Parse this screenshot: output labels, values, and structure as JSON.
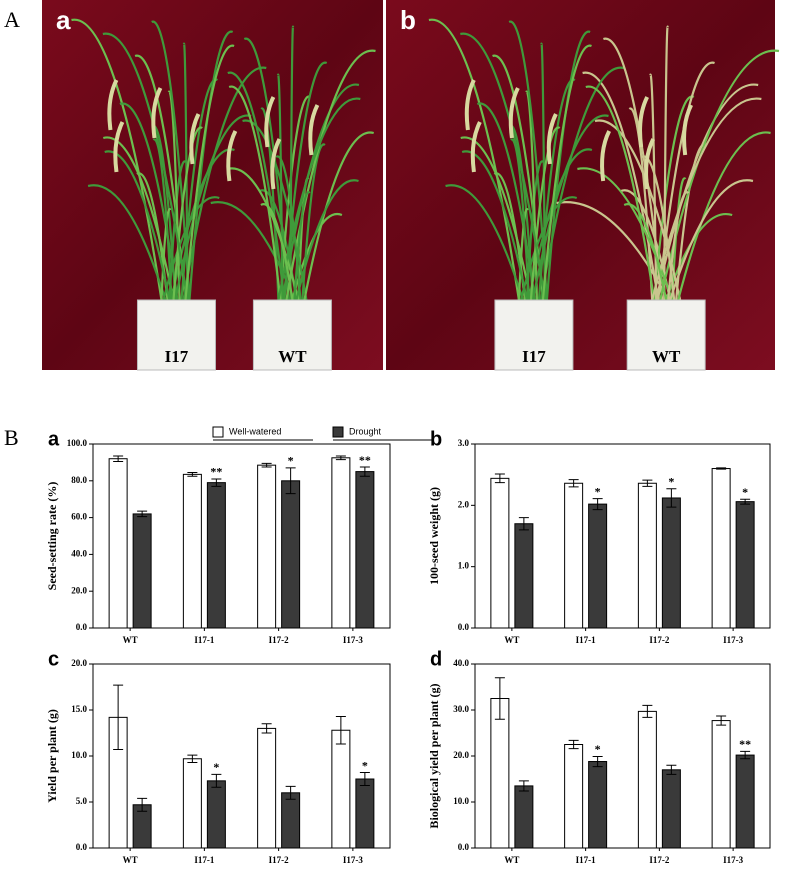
{
  "figure_labels": {
    "A": "A",
    "B": "B"
  },
  "photos": [
    {
      "letter": "a",
      "pots": [
        "I17",
        "WT"
      ]
    },
    {
      "letter": "b",
      "pots": [
        "I17",
        "WT"
      ]
    }
  ],
  "chart_data": [
    {
      "type": "bar",
      "panel": "a",
      "ylabel": "Seed-setting rate (%)",
      "categories": [
        "WT",
        "I17-1",
        "I17-2",
        "I17-3"
      ],
      "legend": true,
      "series": [
        {
          "name": "Well-watered",
          "color": "#ffffff",
          "values": [
            92,
            83.5,
            88.5,
            92.5
          ],
          "errors": [
            1.5,
            1,
            1,
            1
          ],
          "annotations": [
            null,
            null,
            null,
            null
          ]
        },
        {
          "name": "Drought",
          "color": "#3a3a3a",
          "values": [
            62,
            79,
            80,
            85
          ],
          "errors": [
            1.5,
            2,
            7,
            2.5
          ],
          "annotations": [
            null,
            "**",
            "*",
            "**"
          ]
        }
      ],
      "ylim": [
        0,
        100
      ],
      "yticks": [
        {
          "value": 0,
          "label": "0.0"
        },
        {
          "value": 20,
          "label": "20.0"
        },
        {
          "value": 40,
          "label": "40.0"
        },
        {
          "value": 60,
          "label": "60.0"
        },
        {
          "value": 80,
          "label": "80.0"
        },
        {
          "value": 100,
          "label": "100.0"
        }
      ]
    },
    {
      "type": "bar",
      "panel": "b",
      "ylabel": "100-seed weight (g)",
      "categories": [
        "WT",
        "I17-1",
        "I17-2",
        "I17-3"
      ],
      "legend": false,
      "series": [
        {
          "name": "Well-watered",
          "color": "#ffffff",
          "values": [
            2.44,
            2.36,
            2.36,
            2.6
          ],
          "errors": [
            0.07,
            0.06,
            0.05,
            0.01
          ],
          "annotations": [
            null,
            null,
            null,
            null
          ]
        },
        {
          "name": "Drought",
          "color": "#3a3a3a",
          "values": [
            1.7,
            2.02,
            2.12,
            2.06
          ],
          "errors": [
            0.1,
            0.09,
            0.15,
            0.04
          ],
          "annotations": [
            null,
            "*",
            "*",
            "*"
          ]
        }
      ],
      "ylim": [
        0,
        3
      ],
      "yticks": [
        {
          "value": 0,
          "label": "0.0"
        },
        {
          "value": 1,
          "label": "1.0"
        },
        {
          "value": 2,
          "label": "2.0"
        },
        {
          "value": 3,
          "label": "3.0"
        }
      ]
    },
    {
      "type": "bar",
      "panel": "c",
      "ylabel": "Yield per plant (g)",
      "categories": [
        "WT",
        "I17-1",
        "I17-2",
        "I17-3"
      ],
      "legend": false,
      "series": [
        {
          "name": "Well-watered",
          "color": "#ffffff",
          "values": [
            14.2,
            9.7,
            13,
            12.8
          ],
          "errors": [
            3.5,
            0.4,
            0.5,
            1.5
          ],
          "annotations": [
            null,
            null,
            null,
            null
          ]
        },
        {
          "name": "Drought",
          "color": "#3a3a3a",
          "values": [
            4.7,
            7.3,
            6,
            7.5
          ],
          "errors": [
            0.7,
            0.7,
            0.7,
            0.7
          ],
          "annotations": [
            null,
            "*",
            null,
            "*"
          ]
        }
      ],
      "ylim": [
        0,
        20
      ],
      "yticks": [
        {
          "value": 0,
          "label": "0.0"
        },
        {
          "value": 5,
          "label": "5.0"
        },
        {
          "value": 10,
          "label": "10.0"
        },
        {
          "value": 15,
          "label": "15.0"
        },
        {
          "value": 20,
          "label": "20.0"
        }
      ]
    },
    {
      "type": "bar",
      "panel": "d",
      "ylabel": "Biological yield per plant (g)",
      "categories": [
        "WT",
        "I17-1",
        "I17-2",
        "I17-3"
      ],
      "legend": false,
      "series": [
        {
          "name": "Well-watered",
          "color": "#ffffff",
          "values": [
            32.5,
            22.5,
            29.7,
            27.7
          ],
          "errors": [
            4.5,
            0.9,
            1.3,
            1.0
          ],
          "annotations": [
            null,
            null,
            null,
            null
          ]
        },
        {
          "name": "Drought",
          "color": "#3a3a3a",
          "values": [
            13.5,
            18.8,
            17,
            20.2
          ],
          "errors": [
            1.1,
            1.1,
            1,
            0.8
          ],
          "annotations": [
            null,
            "*",
            null,
            "**"
          ]
        }
      ],
      "ylim": [
        0,
        40
      ],
      "yticks": [
        {
          "value": 0,
          "label": "0.0"
        },
        {
          "value": 10,
          "label": "10.0"
        },
        {
          "value": 20,
          "label": "20.0"
        },
        {
          "value": 30,
          "label": "30.0"
        },
        {
          "value": 40,
          "label": "40.0"
        }
      ]
    }
  ]
}
